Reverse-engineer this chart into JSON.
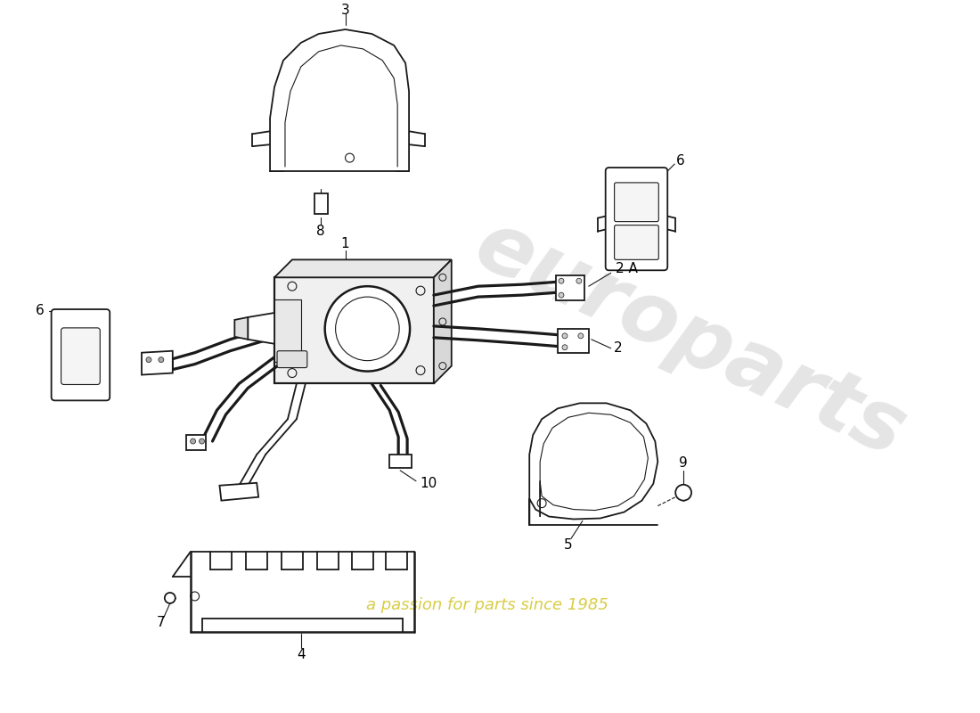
{
  "background_color": "#ffffff",
  "line_color": "#1a1a1a",
  "watermark_text1": "europarts",
  "watermark_text2": "a passion for parts since 1985",
  "watermark_color1": "#cccccc",
  "watermark_color2": "#d4c832",
  "lw": 1.3
}
